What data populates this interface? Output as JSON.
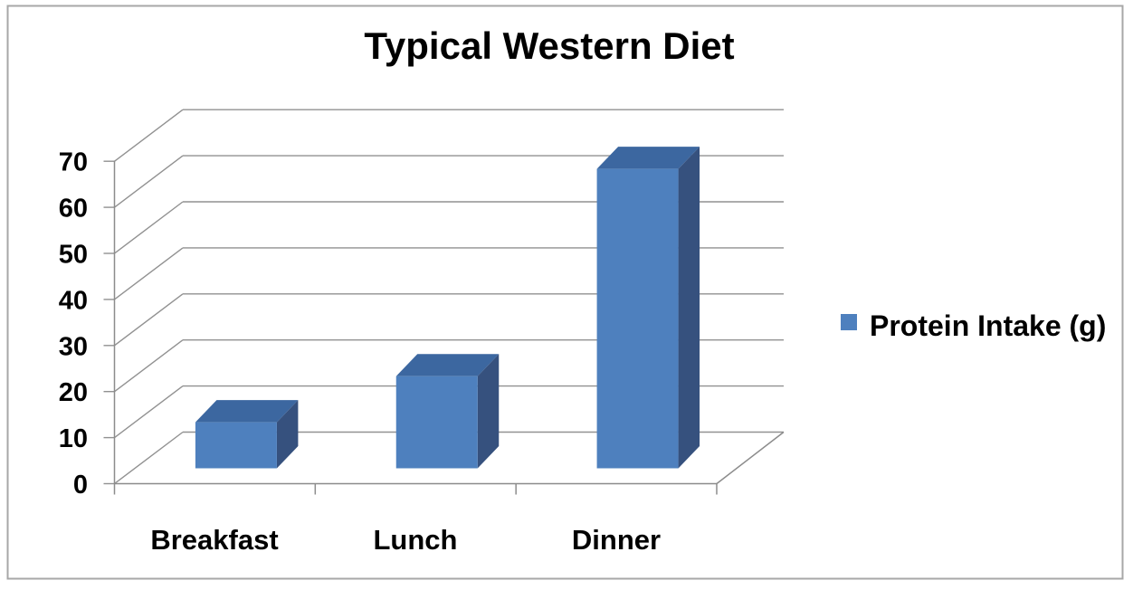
{
  "window": {
    "background": "#ffffff",
    "border_color": "#a7a7a7"
  },
  "chart_data": {
    "type": "bar",
    "variant": "3d-clustered-column",
    "title": "Typical Western Diet",
    "categories": [
      "Breakfast",
      "Lunch",
      "Dinner"
    ],
    "series": [
      {
        "name": "Protein Intake (g)",
        "values": [
          10,
          20,
          65
        ]
      }
    ],
    "xlabel": "",
    "ylabel": "",
    "ylim": [
      0,
      70
    ],
    "y_tick_step": 10,
    "y_tick_labels": [
      "0",
      "10",
      "20",
      "30",
      "40",
      "50",
      "60",
      "70"
    ],
    "grid": true,
    "legend_position": "right",
    "legend_entries": [
      "Protein Intake (g)"
    ],
    "colors": {
      "bar_front": "#4E80BE",
      "bar_top": "#3C67A0",
      "bar_side": "#36517E",
      "gridline": "#919191",
      "axis": "#8C8C8C",
      "text": "#000000"
    }
  }
}
